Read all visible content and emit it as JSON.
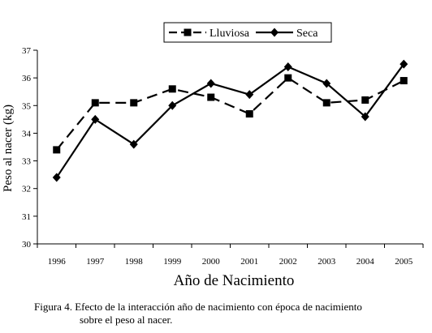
{
  "chart_data": {
    "type": "line",
    "title": "",
    "xlabel": "Año de Nacimiento",
    "ylabel": "Peso al nacer (kg)",
    "categories": [
      "1996",
      "1997",
      "1998",
      "1999",
      "2000",
      "2001",
      "2002",
      "2003",
      "2004",
      "2005"
    ],
    "ylim": [
      30,
      37
    ],
    "yticks": [
      "30",
      "31",
      "32",
      "33",
      "34",
      "35",
      "36",
      "37"
    ],
    "grid": false,
    "legend_position": "top-center",
    "series": [
      {
        "name": "Lluviosa",
        "marker": "square",
        "line_style": "dashed",
        "color": "#000000",
        "values": [
          33.4,
          35.1,
          35.1,
          35.6,
          35.3,
          34.7,
          36.0,
          35.1,
          35.2,
          35.9
        ]
      },
      {
        "name": "Seca",
        "marker": "diamond",
        "line_style": "solid",
        "color": "#000000",
        "values": [
          32.4,
          34.5,
          33.6,
          35.0,
          35.8,
          35.4,
          36.4,
          35.8,
          34.6,
          36.5
        ]
      }
    ]
  },
  "caption": {
    "line1": "Figura 4. Efecto de la interacción año de nacimiento con época de nacimiento",
    "line2": "sobre el peso al nacer."
  }
}
